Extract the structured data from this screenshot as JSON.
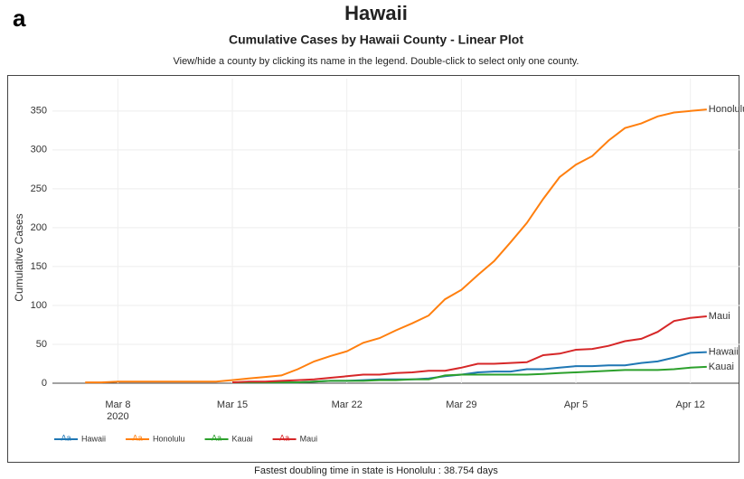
{
  "panel_label": "a",
  "chart_data": {
    "type": "line",
    "title": "Hawaii",
    "subtitle": "Cumulative Cases by Hawaii County - Linear Plot",
    "instruction": "View/hide a county by clicking its name in the legend. Double-click to select only one county.",
    "y_label": "Cumulative Cases",
    "x": [
      "2020-03-06",
      "2020-03-07",
      "2020-03-08",
      "2020-03-09",
      "2020-03-10",
      "2020-03-11",
      "2020-03-12",
      "2020-03-13",
      "2020-03-14",
      "2020-03-15",
      "2020-03-16",
      "2020-03-17",
      "2020-03-18",
      "2020-03-19",
      "2020-03-20",
      "2020-03-21",
      "2020-03-22",
      "2020-03-23",
      "2020-03-24",
      "2020-03-25",
      "2020-03-26",
      "2020-03-27",
      "2020-03-28",
      "2020-03-29",
      "2020-03-30",
      "2020-03-31",
      "2020-04-01",
      "2020-04-02",
      "2020-04-03",
      "2020-04-04",
      "2020-04-05",
      "2020-04-06",
      "2020-04-07",
      "2020-04-08",
      "2020-04-09",
      "2020-04-10",
      "2020-04-11",
      "2020-04-12",
      "2020-04-13"
    ],
    "series": [
      {
        "name": "Hawaii",
        "color": "#1f77b4",
        "values": [
          null,
          null,
          null,
          null,
          null,
          null,
          null,
          null,
          null,
          1,
          1,
          1,
          1,
          1,
          2,
          3,
          3,
          4,
          5,
          5,
          5,
          6,
          9,
          11,
          14,
          15,
          15,
          18,
          18,
          20,
          22,
          22,
          23,
          23,
          26,
          28,
          33,
          39,
          40
        ]
      },
      {
        "name": "Honolulu",
        "color": "#ff7f0e",
        "values": [
          1,
          1,
          2,
          2,
          2,
          2,
          2,
          2,
          2,
          4,
          6,
          8,
          10,
          18,
          28,
          35,
          41,
          52,
          58,
          68,
          77,
          87,
          108,
          120,
          139,
          157,
          181,
          206,
          237,
          265,
          281,
          292,
          312,
          328,
          334,
          343,
          348,
          350,
          352
        ]
      },
      {
        "name": "Kauai",
        "color": "#2ca02c",
        "values": [
          null,
          null,
          null,
          null,
          null,
          null,
          null,
          null,
          null,
          1,
          1,
          1,
          1,
          1,
          2,
          3,
          3,
          3,
          4,
          4,
          5,
          5,
          10,
          11,
          11,
          11,
          11,
          11,
          12,
          13,
          14,
          15,
          16,
          17,
          17,
          17,
          18,
          20,
          21
        ]
      },
      {
        "name": "Maui",
        "color": "#d62728",
        "values": [
          null,
          null,
          null,
          null,
          null,
          null,
          null,
          null,
          null,
          1,
          2,
          2,
          3,
          4,
          5,
          7,
          9,
          11,
          11,
          13,
          14,
          16,
          16,
          20,
          25,
          25,
          26,
          27,
          36,
          38,
          43,
          44,
          48,
          54,
          57,
          66,
          80,
          84,
          86
        ]
      }
    ],
    "xlim": [
      "2020-03-04",
      "2020-04-15"
    ],
    "xticks": [
      {
        "value": "2020-03-08",
        "label": "Mar 8"
      },
      {
        "value": "2020-03-15",
        "label": "Mar 15"
      },
      {
        "value": "2020-03-22",
        "label": "Mar 22"
      },
      {
        "value": "2020-03-29",
        "label": "Mar 29"
      },
      {
        "value": "2020-04-05",
        "label": "Apr 5"
      },
      {
        "value": "2020-04-12",
        "label": "Apr 12"
      }
    ],
    "x_year_label": "2020",
    "ylim": [
      0,
      380
    ],
    "yticks": [
      0,
      50,
      100,
      150,
      200,
      250,
      300,
      350
    ],
    "grid": true,
    "legend_position": "bottom",
    "legend_symbol_text": "Aa",
    "footnote": "Fastest doubling time in state is Honolulu : 38.754 days"
  }
}
